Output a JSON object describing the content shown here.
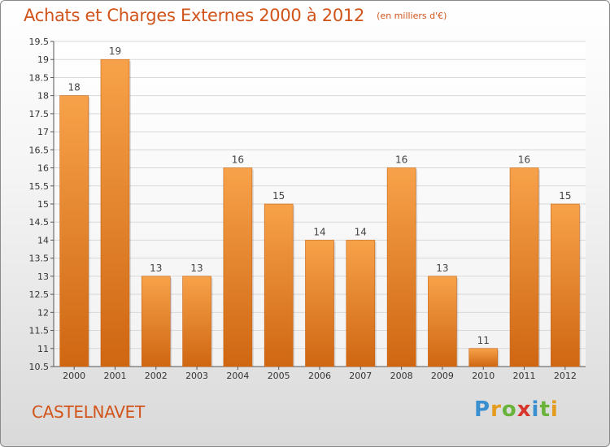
{
  "header": {
    "title": "Achats et Charges Externes 2000 à 2012",
    "unit": "(en milliers d'€)"
  },
  "commune": "CASTELNAVET",
  "logo": {
    "text": "Proxiti",
    "letters": [
      "P",
      "r",
      "o",
      "x",
      "i",
      "t",
      "i"
    ]
  },
  "chart_data": {
    "type": "bar",
    "title": "Achats et Charges Externes 2000 à 2012",
    "subtitle": "(en milliers d'€)",
    "categories": [
      "2000",
      "2001",
      "2002",
      "2003",
      "2004",
      "2005",
      "2006",
      "2007",
      "2008",
      "2009",
      "2010",
      "2011",
      "2012"
    ],
    "values": [
      18,
      19,
      13,
      13,
      16,
      15,
      14,
      14,
      16,
      13,
      11,
      16,
      15
    ],
    "data_labels": [
      "18",
      "19",
      "13",
      "13",
      "16",
      "15",
      "14",
      "14",
      "16",
      "13",
      "11",
      "16",
      "15"
    ],
    "ylim": [
      10.5,
      19.5
    ],
    "yticks": [
      10.5,
      11,
      11.5,
      12,
      12.5,
      13,
      13.5,
      14,
      14.5,
      15,
      15.5,
      16,
      16.5,
      17,
      17.5,
      18,
      18.5,
      19,
      19.5
    ],
    "ytick_labels": [
      "10.5",
      "11",
      "11.5",
      "12",
      "12.5",
      "13",
      "13.5",
      "14",
      "14.5",
      "15",
      "15.5",
      "16",
      "16.5",
      "17",
      "17.5",
      "18",
      "18.5",
      "19",
      "19.5"
    ],
    "grid": true,
    "bar_color": "#e87f2a",
    "bar_color_light": "#f7a24a",
    "bar_color_dark": "#cf6612",
    "grid_color": "#d8d8d8"
  }
}
